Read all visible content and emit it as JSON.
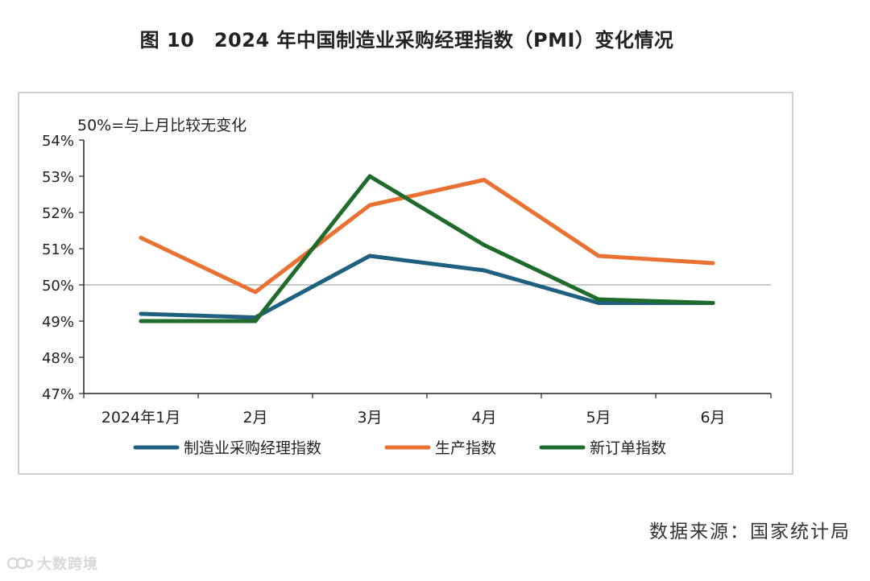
{
  "figure": {
    "title": "图 10　2024 年中国制造业采购经理指数（PMI）变化情况",
    "source": "数据来源：国家统计局",
    "watermark": "大数跨境"
  },
  "chart_data": {
    "type": "line",
    "annotation": "50%=与上月比较无变化",
    "categories": [
      "2024年1月",
      "2月",
      "3月",
      "4月",
      "5月",
      "6月"
    ],
    "ylim": [
      47,
      54
    ],
    "yticks": [
      54,
      53,
      52,
      51,
      50,
      49,
      48,
      47
    ],
    "ytick_labels": [
      "54%",
      "53%",
      "52%",
      "51%",
      "50%",
      "49%",
      "48%",
      "47%"
    ],
    "reference_line": 50,
    "legend_position": "bottom",
    "series": [
      {
        "name": "制造业采购经理指数",
        "color": "#1f5f80",
        "values": [
          49.2,
          49.1,
          50.8,
          50.4,
          49.5,
          49.5
        ]
      },
      {
        "name": "生产指数",
        "color": "#e97132",
        "values": [
          51.3,
          49.8,
          52.2,
          52.9,
          50.8,
          50.6
        ]
      },
      {
        "name": "新订单指数",
        "color": "#1e6b2b",
        "values": [
          49.0,
          49.0,
          53.0,
          51.1,
          49.6,
          49.5
        ]
      }
    ]
  }
}
